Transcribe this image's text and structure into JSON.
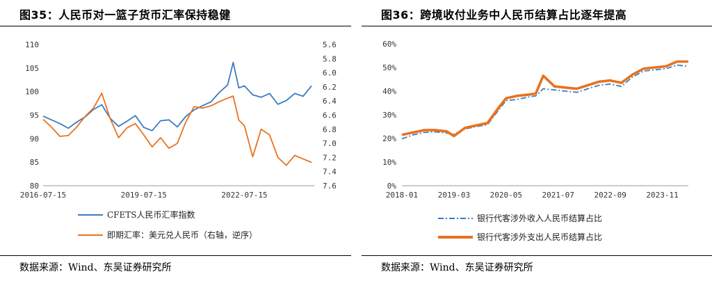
{
  "charts": [
    {
      "title": "图35：人民币对一篮子货币汇率保持稳健",
      "source": "数据来源：Wind、东吴证券研究所"
    },
    {
      "title": "图36：跨境收付业务中人民币结算占比逐年提高",
      "source": "数据来源：Wind、东吴证券研究所"
    }
  ],
  "chart_data": [
    {
      "type": "line",
      "title": "图35：人民币对一篮子货币汇率保持稳健",
      "x_tick_labels": [
        "2016-07-15",
        "2019-07-15",
        "2022-07-15"
      ],
      "y_left": {
        "ylim": [
          80,
          110
        ],
        "ticks": [
          "80",
          "85",
          "90",
          "95",
          "100",
          "105",
          "110"
        ]
      },
      "y_right": {
        "ylim": [
          7.6,
          5.6
        ],
        "inverted": true,
        "ticks": [
          "5.6",
          "5.8",
          "6.0",
          "6.2",
          "6.4",
          "6.6",
          "6.8",
          "7.0",
          "7.2",
          "7.4",
          "7.6"
        ]
      },
      "colors": {
        "cfets": "#3c7cc0",
        "spot": "#e8721f"
      },
      "series": [
        {
          "name": "CFETS人民币汇率指数",
          "axis": "left",
          "x": [
            "2016-07",
            "2016-10",
            "2017-01",
            "2017-04",
            "2017-07",
            "2017-10",
            "2018-01",
            "2018-04",
            "2018-07",
            "2018-10",
            "2019-01",
            "2019-04",
            "2019-07",
            "2019-10",
            "2020-01",
            "2020-04",
            "2020-07",
            "2020-10",
            "2021-01",
            "2021-04",
            "2021-07",
            "2021-10",
            "2022-01",
            "2022-03",
            "2022-05",
            "2022-07",
            "2022-10",
            "2023-01",
            "2023-04",
            "2023-07",
            "2023-10",
            "2024-01",
            "2024-04",
            "2024-07"
          ],
          "values": [
            94.8,
            94.0,
            93.2,
            92.2,
            93.5,
            94.6,
            96.2,
            97.2,
            94.3,
            92.6,
            93.7,
            94.9,
            92.4,
            91.7,
            93.8,
            94.0,
            92.5,
            94.7,
            96.1,
            97.0,
            97.8,
            99.8,
            101.4,
            106.2,
            100.8,
            101.2,
            99.3,
            98.8,
            99.6,
            97.3,
            98.1,
            99.6,
            99.0,
            101.2
          ]
        },
        {
          "name": "即期汇率：美元兑人民币（右轴，逆序）",
          "axis": "right",
          "x": [
            "2016-07",
            "2016-10",
            "2017-01",
            "2017-04",
            "2017-07",
            "2017-10",
            "2018-01",
            "2018-04",
            "2018-07",
            "2018-10",
            "2019-01",
            "2019-04",
            "2019-07",
            "2019-10",
            "2020-01",
            "2020-04",
            "2020-07",
            "2020-10",
            "2021-01",
            "2021-04",
            "2021-07",
            "2021-10",
            "2022-01",
            "2022-03",
            "2022-05",
            "2022-07",
            "2022-10",
            "2023-01",
            "2023-04",
            "2023-07",
            "2023-10",
            "2024-01",
            "2024-04",
            "2024-07"
          ],
          "values": [
            6.66,
            6.77,
            6.9,
            6.89,
            6.77,
            6.62,
            6.5,
            6.29,
            6.65,
            6.92,
            6.78,
            6.72,
            6.88,
            7.05,
            6.92,
            7.07,
            7.0,
            6.7,
            6.48,
            6.5,
            6.47,
            6.41,
            6.36,
            6.33,
            6.67,
            6.75,
            7.19,
            6.8,
            6.88,
            7.2,
            7.31,
            7.17,
            7.22,
            7.27
          ]
        }
      ],
      "legend_placement": "bottom"
    },
    {
      "type": "line",
      "title": "图36：跨境收付业务中人民币结算占比逐年提高",
      "x_tick_labels": [
        "2018-01",
        "2019-03",
        "2020-05",
        "2021-07",
        "2022-09",
        "2023-11"
      ],
      "ylim": [
        0,
        60
      ],
      "y_tick_labels": [
        "0%",
        "10%",
        "20%",
        "30%",
        "40%",
        "50%",
        "60%"
      ],
      "colors": {
        "receipts": "#3c7cc0",
        "payments": "#e8721f"
      },
      "series": [
        {
          "name": "银行代客涉外收入人民币结算占比",
          "x": [
            "2018-01",
            "2018-04",
            "2018-07",
            "2018-10",
            "2019-01",
            "2019-03",
            "2019-06",
            "2019-09",
            "2019-12",
            "2020-03",
            "2020-05",
            "2020-08",
            "2020-11",
            "2021-01",
            "2021-03",
            "2021-06",
            "2021-09",
            "2021-12",
            "2022-03",
            "2022-06",
            "2022-09",
            "2022-12",
            "2023-03",
            "2023-06",
            "2023-09",
            "2023-12",
            "2024-03",
            "2024-06"
          ],
          "values": [
            19.8,
            21.5,
            22.5,
            22.8,
            22.3,
            21.8,
            24.0,
            25.0,
            25.8,
            32.0,
            36.0,
            36.5,
            37.5,
            38.0,
            41.0,
            40.5,
            40.0,
            39.5,
            41.0,
            42.5,
            43.0,
            42.0,
            46.0,
            48.5,
            49.0,
            49.5,
            51.0,
            50.5
          ]
        },
        {
          "name": "银行代客涉外支出人民币结算占比",
          "x": [
            "2018-01",
            "2018-04",
            "2018-07",
            "2018-10",
            "2019-01",
            "2019-03",
            "2019-06",
            "2019-09",
            "2019-12",
            "2020-03",
            "2020-05",
            "2020-08",
            "2020-11",
            "2021-01",
            "2021-03",
            "2021-06",
            "2021-09",
            "2021-12",
            "2022-03",
            "2022-06",
            "2022-09",
            "2022-12",
            "2023-03",
            "2023-06",
            "2023-09",
            "2023-12",
            "2024-03",
            "2024-06"
          ],
          "values": [
            21.5,
            22.5,
            23.5,
            23.5,
            23.0,
            21.0,
            24.5,
            25.5,
            26.5,
            33.0,
            37.0,
            38.0,
            38.5,
            39.0,
            46.5,
            42.0,
            41.5,
            41.0,
            42.5,
            44.0,
            44.5,
            43.5,
            47.0,
            49.5,
            50.0,
            50.5,
            52.5,
            52.5
          ]
        }
      ],
      "legend_placement": "bottom"
    }
  ]
}
